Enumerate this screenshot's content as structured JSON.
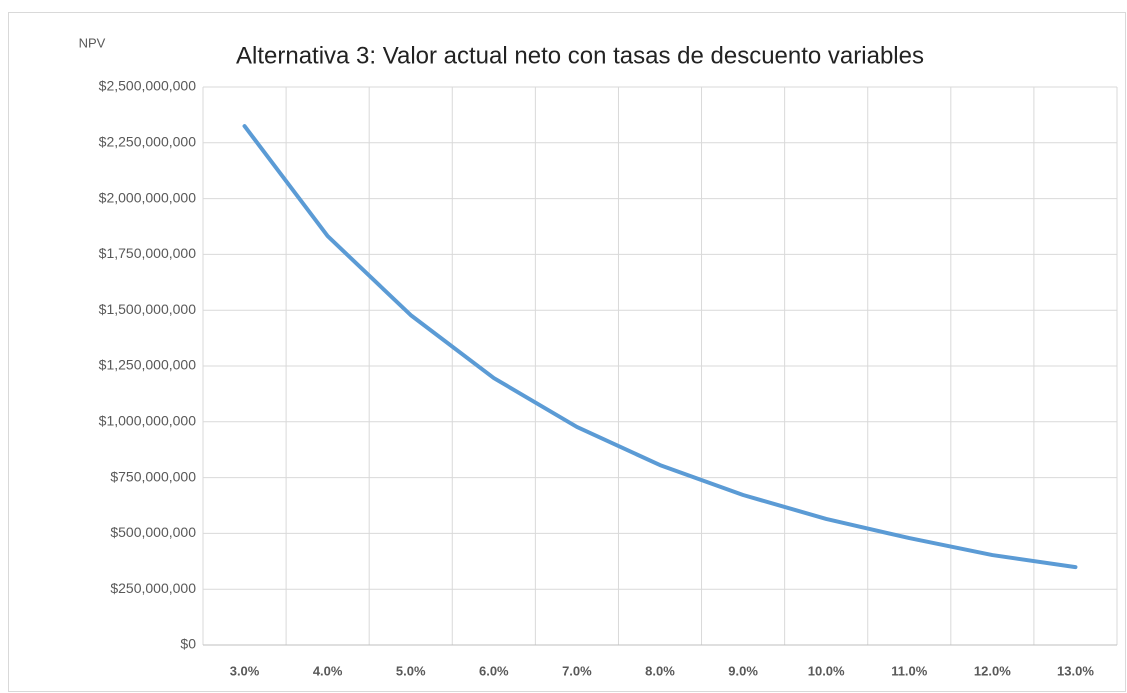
{
  "chart_data": {
    "type": "line",
    "title": "Alternativa 3: Valor actual neto  con  tasas de descuento variables",
    "y_label": "NPV",
    "categories": [
      "3.0%",
      "4.0%",
      "5.0%",
      "6.0%",
      "7.0%",
      "8.0%",
      "9.0%",
      "10.0%",
      "11.0%",
      "12.0%",
      "13.0%"
    ],
    "series": [
      {
        "name": "NPV",
        "color": "#5b9bd5",
        "values": [
          2325000000,
          1832000000,
          1478000000,
          1196000000,
          977000000,
          806000000,
          672000000,
          565000000,
          479000000,
          403000000,
          349000000
        ]
      }
    ],
    "ylim": [
      0,
      2500000000
    ],
    "yticks": [
      {
        "value": 0,
        "label": "$0"
      },
      {
        "value": 250000000,
        "label": "$250,000,000"
      },
      {
        "value": 500000000,
        "label": "$500,000,000"
      },
      {
        "value": 750000000,
        "label": "$750,000,000"
      },
      {
        "value": 1000000000,
        "label": "$1,000,000,000"
      },
      {
        "value": 1250000000,
        "label": "$1,250,000,000"
      },
      {
        "value": 1500000000,
        "label": "$1,500,000,000"
      },
      {
        "value": 1750000000,
        "label": "$1,750,000,000"
      },
      {
        "value": 2000000000,
        "label": "$2,000,000,000"
      },
      {
        "value": 2250000000,
        "label": "$2,250,000,000"
      },
      {
        "value": 2500000000,
        "label": "$2,500,000,000"
      }
    ],
    "grid": true
  }
}
